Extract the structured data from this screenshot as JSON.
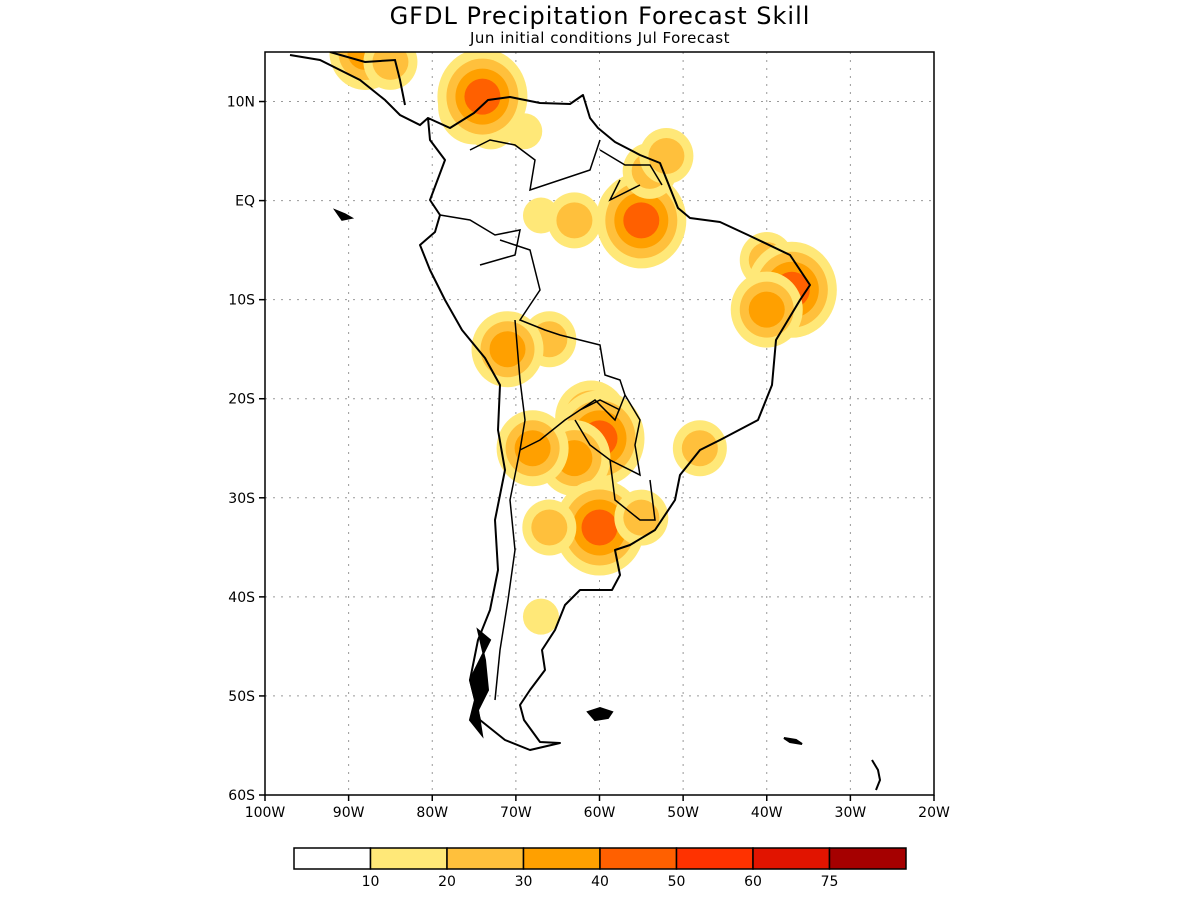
{
  "header": {
    "title": "GFDL Precipitation Forecast Skill",
    "subtitle": "Jun initial conditions  Jul Forecast"
  },
  "map": {
    "lon_range": [
      -100,
      -20
    ],
    "lat_range": [
      -60,
      15
    ],
    "lat_ticks": [
      {
        "value": 10,
        "label": "10N"
      },
      {
        "value": 0,
        "label": "EQ"
      },
      {
        "value": -10,
        "label": "10S"
      },
      {
        "value": -20,
        "label": "20S"
      },
      {
        "value": -30,
        "label": "30S"
      },
      {
        "value": -40,
        "label": "40S"
      },
      {
        "value": -50,
        "label": "50S"
      },
      {
        "value": -60,
        "label": "60S"
      }
    ],
    "lon_ticks": [
      {
        "value": -100,
        "label": "100W"
      },
      {
        "value": -90,
        "label": "90W"
      },
      {
        "value": -80,
        "label": "80W"
      },
      {
        "value": -70,
        "label": "70W"
      },
      {
        "value": -60,
        "label": "60W"
      },
      {
        "value": -50,
        "label": "50W"
      },
      {
        "value": -40,
        "label": "40W"
      },
      {
        "value": -30,
        "label": "30W"
      },
      {
        "value": -20,
        "label": "20W"
      }
    ],
    "grid": true
  },
  "colorbar": {
    "colors": [
      "#ffffff",
      "#ffe878",
      "#ffc03c",
      "#ffa000",
      "#ff6000",
      "#ff3200",
      "#e11400",
      "#a50000"
    ],
    "labels": [
      "10",
      "20",
      "30",
      "40",
      "50",
      "60",
      "75"
    ]
  },
  "skill_regions": [
    {
      "lon": -69,
      "lat": 7,
      "level": 1
    },
    {
      "lon": -73,
      "lat": 8,
      "level": 2
    },
    {
      "lon": -75,
      "lat": 9.5,
      "level": 3
    },
    {
      "lon": -74,
      "lat": 10.5,
      "level": 4
    },
    {
      "lon": -88,
      "lat": 15,
      "level": 3
    },
    {
      "lon": -85,
      "lat": 14,
      "level": 2
    },
    {
      "lon": -67,
      "lat": -1.5,
      "level": 1
    },
    {
      "lon": -63,
      "lat": -2,
      "level": 2
    },
    {
      "lon": -56,
      "lat": -1.5,
      "level": 3
    },
    {
      "lon": -55,
      "lat": -2,
      "level": 4
    },
    {
      "lon": -54,
      "lat": 3,
      "level": 2
    },
    {
      "lon": -52,
      "lat": 4.5,
      "level": 2
    },
    {
      "lon": -40,
      "lat": -6,
      "level": 2
    },
    {
      "lon": -37,
      "lat": -9,
      "level": 4
    },
    {
      "lon": -40,
      "lat": -11,
      "level": 3
    },
    {
      "lon": -66,
      "lat": -14,
      "level": 2
    },
    {
      "lon": -71,
      "lat": -15,
      "level": 3
    },
    {
      "lon": -61,
      "lat": -22,
      "level": 3
    },
    {
      "lon": -60,
      "lat": -24,
      "level": 4
    },
    {
      "lon": -63,
      "lat": -26,
      "level": 3
    },
    {
      "lon": -68,
      "lat": -25,
      "level": 3
    },
    {
      "lon": -60,
      "lat": -33,
      "level": 4
    },
    {
      "lon": -66,
      "lat": -33,
      "level": 2
    },
    {
      "lon": -67,
      "lat": -42,
      "level": 1
    },
    {
      "lon": -48,
      "lat": -25,
      "level": 2
    },
    {
      "lon": -55,
      "lat": -32,
      "level": 2
    }
  ]
}
